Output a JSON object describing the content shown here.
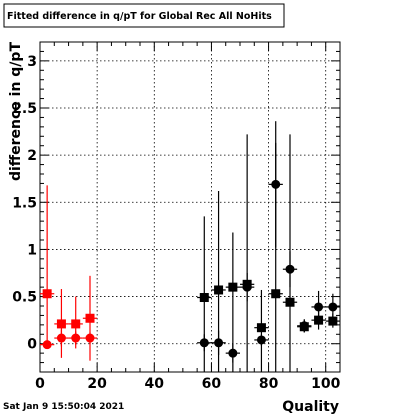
{
  "chart_data": {
    "type": "scatter",
    "title": "Fitted difference in q/pT for Global Rec All NoHits",
    "xlabel": "Quality",
    "ylabel": "difference in q/pT",
    "xlim": [
      0,
      105
    ],
    "ylim": [
      -0.3,
      3.2
    ],
    "xticks": [
      0,
      20,
      40,
      60,
      80,
      100
    ],
    "xtick_labels": [
      "0",
      "20",
      "40",
      "60",
      "80",
      "100"
    ],
    "yticks": [
      0,
      0.5,
      1,
      1.5,
      2,
      2.5,
      3
    ],
    "ytick_labels": [
      "0",
      "0.5",
      "1",
      "1.5",
      "2",
      "2.5",
      "3"
    ],
    "grid": true,
    "legend": "none",
    "series": [
      {
        "marker": "square",
        "color": "#ff0000",
        "points": [
          {
            "x": 2.5,
            "y": 0.53,
            "xerr": 2.5,
            "ylo": -0.05,
            "yhi": 1.68
          },
          {
            "x": 7.5,
            "y": 0.21,
            "xerr": 2.5,
            "ylo": -0.15,
            "yhi": 0.58
          },
          {
            "x": 12.5,
            "y": 0.21,
            "xerr": 2.5,
            "ylo": -0.05,
            "yhi": 0.5
          },
          {
            "x": 17.5,
            "y": 0.27,
            "xerr": 2.5,
            "ylo": -0.18,
            "yhi": 0.72
          }
        ]
      },
      {
        "marker": "circle",
        "color": "#ff0000",
        "points": [
          {
            "x": 2.5,
            "y": -0.01,
            "xerr": 2.5,
            "ylo": -0.05,
            "yhi": 0.03
          },
          {
            "x": 7.5,
            "y": 0.06,
            "xerr": 2.5,
            "ylo": -0.03,
            "yhi": 0.15
          },
          {
            "x": 12.5,
            "y": 0.06,
            "xerr": 2.5,
            "ylo": -0.01,
            "yhi": 0.13
          },
          {
            "x": 17.5,
            "y": 0.06,
            "xerr": 2.5,
            "ylo": 0.0,
            "yhi": 0.12
          }
        ]
      },
      {
        "marker": "square",
        "color": "#000000",
        "points": [
          {
            "x": 57.5,
            "y": 0.49,
            "xerr": 2.5,
            "ylo": -0.32,
            "yhi": 1.35
          },
          {
            "x": 62.5,
            "y": 0.57,
            "xerr": 2.5,
            "ylo": -0.32,
            "yhi": 1.62
          },
          {
            "x": 67.5,
            "y": 0.6,
            "xerr": 2.5,
            "ylo": -0.32,
            "yhi": 1.18
          },
          {
            "x": 72.5,
            "y": 0.63,
            "xerr": 2.5,
            "ylo": -0.32,
            "yhi": 2.22
          },
          {
            "x": 77.5,
            "y": 0.17,
            "xerr": 2.5,
            "ylo": -0.32,
            "yhi": 0.57
          },
          {
            "x": 82.5,
            "y": 0.53,
            "xerr": 2.5,
            "ylo": -0.32,
            "yhi": 2.13
          },
          {
            "x": 87.5,
            "y": 0.44,
            "xerr": 2.5,
            "ylo": -0.32,
            "yhi": 2.22
          },
          {
            "x": 92.5,
            "y": 0.18,
            "xerr": 2.5,
            "ylo": 0.12,
            "yhi": 0.25
          },
          {
            "x": 97.5,
            "y": 0.25,
            "xerr": 2.5,
            "ylo": 0.15,
            "yhi": 0.34
          },
          {
            "x": 102.5,
            "y": 0.24,
            "xerr": 2.5,
            "ylo": 0.17,
            "yhi": 0.32
          }
        ]
      },
      {
        "marker": "circle",
        "color": "#000000",
        "points": [
          {
            "x": 57.5,
            "y": 0.01,
            "xerr": 2.5,
            "ylo": -0.08,
            "yhi": 0.1
          },
          {
            "x": 62.5,
            "y": 0.01,
            "xerr": 2.5,
            "ylo": -0.12,
            "yhi": 0.14
          },
          {
            "x": 67.5,
            "y": -0.1,
            "xerr": 2.5,
            "ylo": -0.2,
            "yhi": 0.0
          },
          {
            "x": 72.5,
            "y": 0.6,
            "xerr": 2.5,
            "ylo": 0.45,
            "yhi": 0.75
          },
          {
            "x": 77.5,
            "y": 0.04,
            "xerr": 2.5,
            "ylo": -0.02,
            "yhi": 0.1
          },
          {
            "x": 82.5,
            "y": 1.69,
            "xerr": 2.5,
            "ylo": 1.02,
            "yhi": 2.36
          },
          {
            "x": 87.5,
            "y": 0.79,
            "xerr": 2.5,
            "ylo": 0.6,
            "yhi": 0.98
          },
          {
            "x": 92.5,
            "y": 0.19,
            "xerr": 2.5,
            "ylo": 0.12,
            "yhi": 0.26
          },
          {
            "x": 97.5,
            "y": 0.39,
            "xerr": 2.5,
            "ylo": 0.22,
            "yhi": 0.56
          },
          {
            "x": 102.5,
            "y": 0.39,
            "xerr": 2.5,
            "ylo": 0.25,
            "yhi": 0.53
          }
        ]
      }
    ]
  },
  "footer": {
    "timestamp": "Sat Jan  9 15:50:04 2021"
  }
}
